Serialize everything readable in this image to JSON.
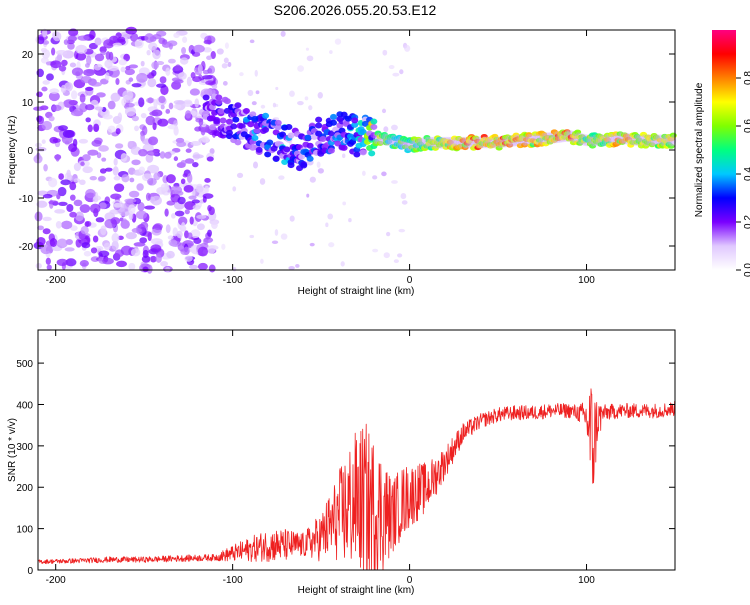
{
  "title": "S206.2026.055.20.53.E12",
  "chart_data": [
    {
      "type": "heatmap",
      "name": "spectrogram",
      "xlabel": "Height of straight line (km)",
      "ylabel": "Frequency (Hz)",
      "xlim": [
        -210,
        150
      ],
      "ylim": [
        -25,
        25
      ],
      "xticks": [
        -200,
        -100,
        0,
        100
      ],
      "yticks": [
        -20,
        -10,
        0,
        10,
        20
      ],
      "colorbar": {
        "label": "Normalized spectral amplitude",
        "range": [
          0,
          1
        ],
        "ticks": [
          0.0,
          0.2,
          0.4,
          0.6,
          0.8
        ],
        "tick_labels": [
          "0.0",
          "0.2",
          "0.4",
          "0.6",
          "0.8"
        ],
        "colormap": [
          "#ffffff",
          "#e0c8ff",
          "#7a00ff",
          "#0000ff",
          "#00c8ff",
          "#00ff80",
          "#80ff00",
          "#ffff00",
          "#ff8000",
          "#ff0000",
          "#ff0080"
        ]
      },
      "ridge": [
        {
          "x": -112,
          "y": 8,
          "a": 0.15
        },
        {
          "x": -100,
          "y": 6,
          "a": 0.2
        },
        {
          "x": -90,
          "y": 4,
          "a": 0.3
        },
        {
          "x": -80,
          "y": 3,
          "a": 0.3
        },
        {
          "x": -70,
          "y": 1,
          "a": 0.35
        },
        {
          "x": -60,
          "y": 0,
          "a": 0.3
        },
        {
          "x": -50,
          "y": 3,
          "a": 0.25
        },
        {
          "x": -40,
          "y": 4,
          "a": 0.3
        },
        {
          "x": -30,
          "y": 3,
          "a": 0.35
        },
        {
          "x": -20,
          "y": 2.5,
          "a": 0.7
        },
        {
          "x": -10,
          "y": 2,
          "a": 0.55
        },
        {
          "x": 0,
          "y": 1,
          "a": 0.6
        },
        {
          "x": 10,
          "y": 1.5,
          "a": 0.65
        },
        {
          "x": 20,
          "y": 1.5,
          "a": 0.7
        },
        {
          "x": 30,
          "y": 1.5,
          "a": 0.8
        },
        {
          "x": 40,
          "y": 1.6,
          "a": 0.85
        },
        {
          "x": 50,
          "y": 1.6,
          "a": 0.85
        },
        {
          "x": 60,
          "y": 2,
          "a": 0.8
        },
        {
          "x": 70,
          "y": 2.2,
          "a": 0.75
        },
        {
          "x": 80,
          "y": 2.5,
          "a": 0.8
        },
        {
          "x": 90,
          "y": 3,
          "a": 0.9
        },
        {
          "x": 100,
          "y": 2,
          "a": 0.6
        },
        {
          "x": 110,
          "y": 2,
          "a": 0.7
        },
        {
          "x": 120,
          "y": 2.5,
          "a": 0.8
        },
        {
          "x": 130,
          "y": 2,
          "a": 0.75
        },
        {
          "x": 140,
          "y": 2,
          "a": 0.7
        },
        {
          "x": 150,
          "y": 2,
          "a": 0.7
        }
      ]
    },
    {
      "type": "line",
      "name": "snr",
      "xlabel": "Height of straight line (km)",
      "ylabel": "SNR (10 * v/v)",
      "xlim": [
        -210,
        150
      ],
      "ylim": [
        0,
        580
      ],
      "xticks": [
        -200,
        -100,
        0,
        100
      ],
      "yticks": [
        0,
        100,
        200,
        300,
        400,
        500
      ],
      "color": "#ee2020",
      "series": [
        {
          "name": "SNR",
          "x": [
            -210,
            -190,
            -170,
            -150,
            -130,
            -110,
            -100,
            -90,
            -80,
            -70,
            -60,
            -50,
            -40,
            -35,
            -30,
            -25,
            -20,
            -15,
            -10,
            -5,
            0,
            10,
            20,
            30,
            40,
            50,
            60,
            70,
            80,
            90,
            95,
            100,
            102,
            104,
            106,
            110,
            120,
            130,
            140,
            150
          ],
          "y": [
            20,
            22,
            25,
            25,
            28,
            30,
            40,
            50,
            60,
            60,
            60,
            80,
            130,
            150,
            170,
            160,
            150,
            140,
            130,
            160,
            180,
            200,
            260,
            330,
            360,
            375,
            380,
            380,
            385,
            385,
            380,
            370,
            330,
            300,
            360,
            380,
            385,
            385,
            385,
            390
          ],
          "noise": [
            5,
            6,
            7,
            7,
            8,
            8,
            20,
            30,
            40,
            40,
            30,
            60,
            110,
            150,
            170,
            200,
            170,
            150,
            90,
            90,
            80,
            60,
            40,
            25,
            18,
            18,
            18,
            18,
            18,
            18,
            20,
            40,
            150,
            140,
            60,
            20,
            18,
            18,
            18,
            18
          ]
        }
      ]
    }
  ]
}
